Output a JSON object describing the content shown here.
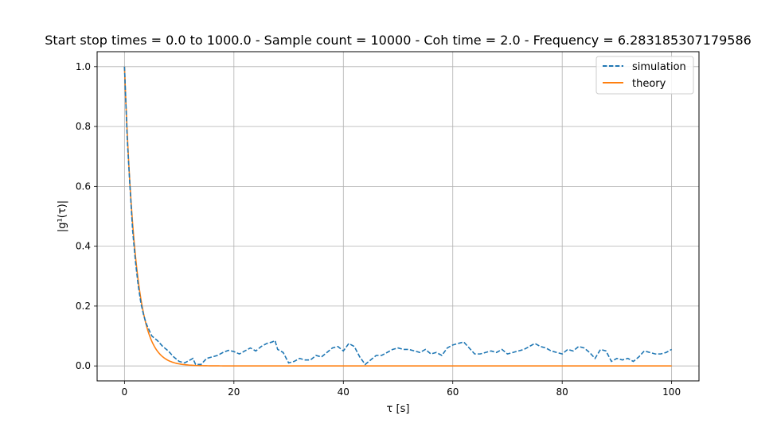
{
  "chart_data": {
    "type": "line",
    "title": "Start stop times = 0.0 to 1000.0 - Sample count = 10000 - Coh time = 2.0 - Frequency = 6.283185307179586",
    "xlabel": "τ [s]",
    "ylabel": "|g¹(τ)|",
    "xlim": [
      -5,
      105
    ],
    "ylim": [
      -0.05,
      1.05
    ],
    "x_ticks": [
      0,
      20,
      40,
      60,
      80,
      100
    ],
    "x_tick_labels": [
      "0",
      "20",
      "40",
      "60",
      "80",
      "100"
    ],
    "y_ticks": [
      0.0,
      0.2,
      0.4,
      0.6,
      0.8,
      1.0
    ],
    "y_tick_labels": [
      "0.0",
      "0.2",
      "0.4",
      "0.6",
      "0.8",
      "1.0"
    ],
    "grid": true,
    "legend_position": "top-right",
    "series": [
      {
        "name": "simulation",
        "color": "#1f77b4",
        "style": "dashed",
        "x": [
          0,
          0.5,
          1,
          1.5,
          2,
          2.5,
          3,
          3.5,
          4,
          5,
          6,
          7,
          8,
          9,
          10,
          11,
          12,
          12.5,
          13,
          14,
          15,
          16,
          17,
          18,
          19,
          20,
          21,
          22,
          23,
          24,
          25,
          26,
          27,
          27.5,
          28,
          29,
          30,
          31,
          32,
          33,
          34,
          35,
          36,
          37,
          38,
          39,
          40,
          41,
          42,
          43,
          44,
          45,
          46,
          47,
          48,
          49,
          50,
          51,
          52,
          53,
          54,
          55,
          56,
          57,
          58,
          59,
          60,
          61,
          62,
          63,
          64,
          65,
          66,
          67,
          68,
          69,
          70,
          71,
          72,
          73,
          74,
          75,
          76,
          77,
          78,
          79,
          80,
          81,
          82,
          83,
          84,
          85,
          86,
          87,
          88,
          89,
          90,
          91,
          92,
          93,
          94,
          95,
          96,
          97,
          98,
          99,
          100
        ],
        "values": [
          1.0,
          0.76,
          0.6,
          0.45,
          0.35,
          0.27,
          0.21,
          0.17,
          0.14,
          0.1,
          0.085,
          0.065,
          0.05,
          0.03,
          0.015,
          0.01,
          0.02,
          0.025,
          0.005,
          0.005,
          0.025,
          0.03,
          0.035,
          0.045,
          0.052,
          0.048,
          0.04,
          0.05,
          0.06,
          0.05,
          0.065,
          0.075,
          0.08,
          0.085,
          0.055,
          0.045,
          0.01,
          0.015,
          0.025,
          0.02,
          0.02,
          0.035,
          0.03,
          0.045,
          0.06,
          0.065,
          0.05,
          0.075,
          0.065,
          0.03,
          0.005,
          0.02,
          0.035,
          0.035,
          0.045,
          0.055,
          0.06,
          0.055,
          0.055,
          0.05,
          0.045,
          0.055,
          0.04,
          0.045,
          0.035,
          0.06,
          0.07,
          0.075,
          0.08,
          0.06,
          0.04,
          0.04,
          0.045,
          0.05,
          0.045,
          0.055,
          0.04,
          0.045,
          0.05,
          0.055,
          0.065,
          0.075,
          0.065,
          0.06,
          0.05,
          0.045,
          0.04,
          0.055,
          0.05,
          0.065,
          0.06,
          0.045,
          0.025,
          0.055,
          0.05,
          0.015,
          0.025,
          0.02,
          0.025,
          0.015,
          0.03,
          0.05,
          0.045,
          0.04,
          0.04,
          0.045,
          0.055
        ]
      },
      {
        "name": "theory",
        "color": "#ff7f0e",
        "style": "solid",
        "function": "exp(-x/2)",
        "x_range": [
          0,
          100
        ]
      }
    ]
  }
}
